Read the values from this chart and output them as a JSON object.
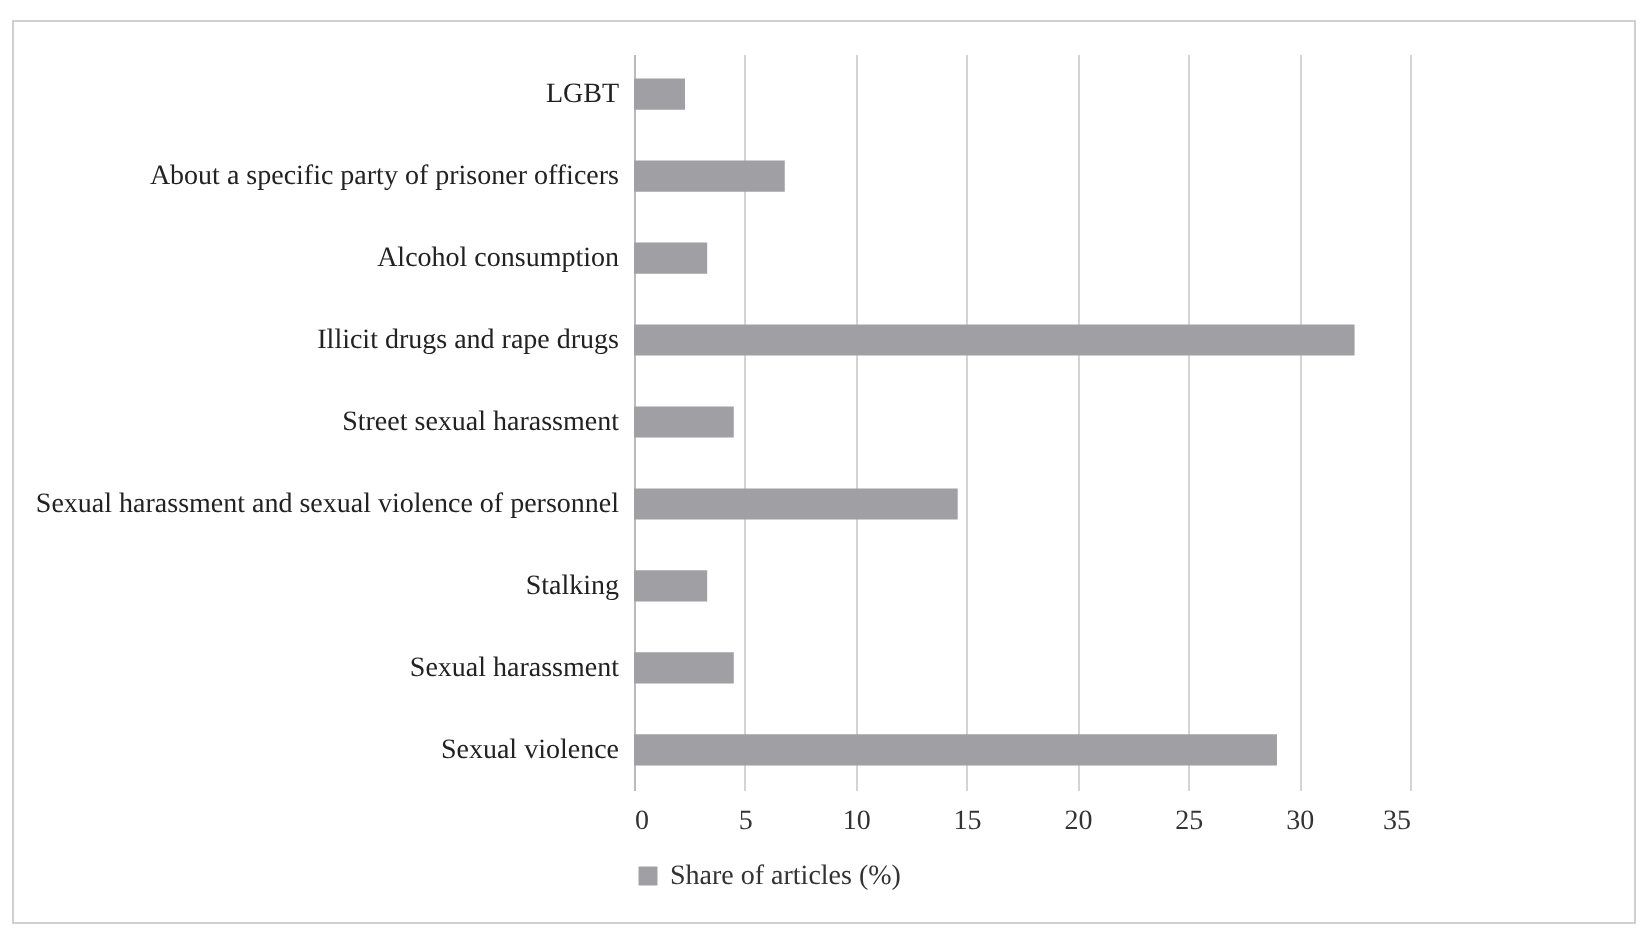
{
  "chart_data": {
    "type": "bar",
    "orientation": "horizontal",
    "categories": [
      "LGBT",
      "About a specific party of prisoner officers",
      "Alcohol consumption",
      "Illicit drugs and rape drugs",
      "Street sexual harassment",
      "Sexual harassment and sexual violence of personnel",
      "Stalking",
      "Sexual harassment",
      "Sexual violence"
    ],
    "series": [
      {
        "name": "Share of articles (%)",
        "color": "#a0a0a4",
        "values": [
          2.3,
          6.8,
          3.3,
          32.5,
          4.5,
          14.6,
          3.3,
          4.5,
          29.0
        ]
      }
    ],
    "xlim": [
      0,
      35
    ],
    "xticks": [
      0,
      5,
      10,
      15,
      20,
      25,
      30,
      35
    ],
    "grid": "x",
    "legend": "bottom"
  }
}
